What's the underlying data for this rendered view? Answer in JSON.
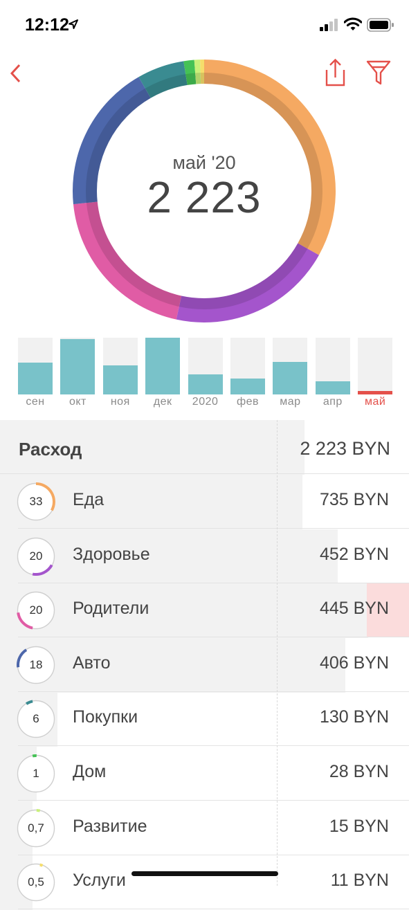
{
  "status_bar": {
    "time": "12:12"
  },
  "header": {
    "period": "май '20",
    "total": "2 223"
  },
  "colors": {
    "accent": "#e4504a",
    "bar": "#79c2c9"
  },
  "donut": {
    "segments": [
      {
        "name": "Еда",
        "share": 0.331,
        "color": "#f5a962"
      },
      {
        "name": "Здоровье",
        "share": 0.203,
        "color": "#a455cc"
      },
      {
        "name": "Родители",
        "share": 0.2,
        "color": "#e05ca5"
      },
      {
        "name": "Авто",
        "share": 0.183,
        "color": "#4d67ab"
      },
      {
        "name": "Покупки",
        "share": 0.058,
        "color": "#3a8b91"
      },
      {
        "name": "Дом",
        "share": 0.013,
        "color": "#45c255"
      },
      {
        "name": "Развитие",
        "share": 0.007,
        "color": "#c9f07a"
      },
      {
        "name": "Услуги",
        "share": 0.005,
        "color": "#f5dd6b"
      }
    ]
  },
  "months": {
    "items": [
      {
        "label": "сен",
        "level": 0.56
      },
      {
        "label": "окт",
        "level": 0.97
      },
      {
        "label": "ноя",
        "level": 0.51
      },
      {
        "label": "дек",
        "level": 1.0
      },
      {
        "label": "2020",
        "level": 0.35
      },
      {
        "label": "фев",
        "level": 0.28
      },
      {
        "label": "мар",
        "level": 0.57
      },
      {
        "label": "апр",
        "level": 0.23
      },
      {
        "label": "май",
        "level": 0.06,
        "active": true
      }
    ]
  },
  "table": {
    "header": {
      "name": "Расход",
      "amount": "2 223 BYN",
      "fill": 0.745
    },
    "rows": [
      {
        "percent": "33",
        "name": "Еда",
        "amount": "735 BYN",
        "fill": 0.74,
        "share": 0.33,
        "color": "#f5a962"
      },
      {
        "percent": "20",
        "name": "Здоровье",
        "amount": "452 BYN",
        "fill": 0.825,
        "share": 0.2,
        "color": "#a455cc"
      },
      {
        "percent": "20",
        "name": "Родители",
        "amount": "445 BYN",
        "fill": 0.9,
        "share": 0.2,
        "color": "#e05ca5",
        "highlight": true
      },
      {
        "percent": "18",
        "name": "Авто",
        "amount": "406 BYN",
        "fill": 0.845,
        "share": 0.18,
        "color": "#4d67ab"
      },
      {
        "percent": "6",
        "name": "Покупки",
        "amount": "130 BYN",
        "fill": 0.14,
        "share": 0.06,
        "color": "#3a8b91"
      },
      {
        "percent": "1",
        "name": "Дом",
        "amount": "28 BYN",
        "fill": 0.09,
        "share": 0.035,
        "color": "#45c255"
      },
      {
        "percent": "0,7",
        "name": "Развитие",
        "amount": "15 BYN",
        "fill": 0.08,
        "share": 0.03,
        "color": "#c9f07a"
      },
      {
        "percent": "0,5",
        "name": "Услуги",
        "amount": "11 BYN",
        "fill": 0.08,
        "share": 0.025,
        "color": "#f5dd6b"
      }
    ]
  }
}
